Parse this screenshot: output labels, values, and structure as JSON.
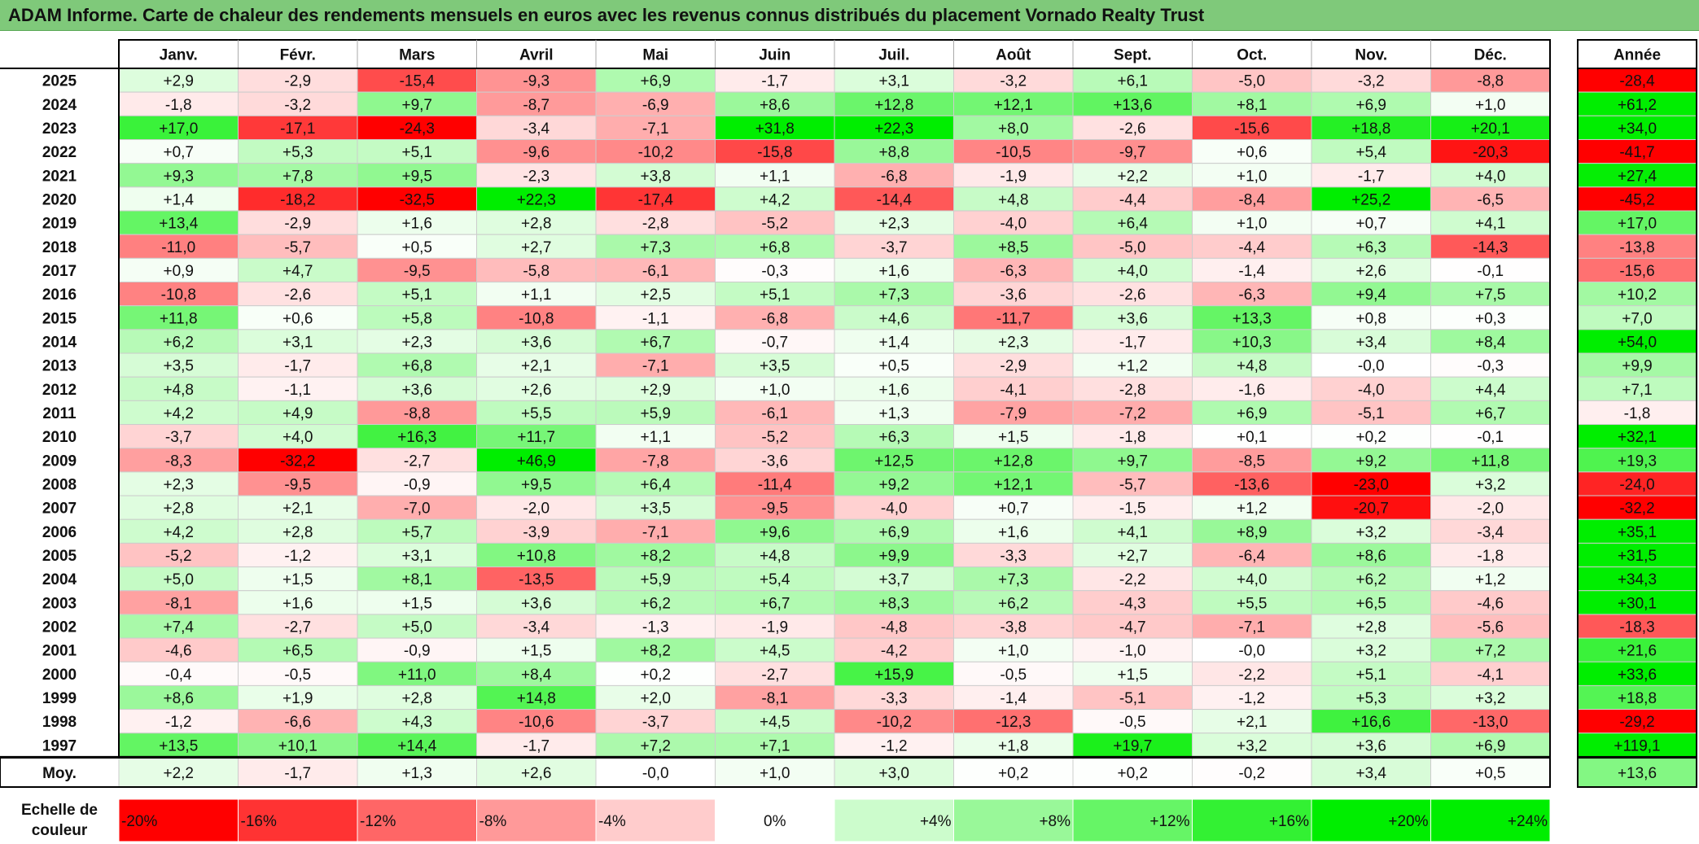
{
  "title": "ADAM Informe. Carte de chaleur des rendements mensuels en euros avec les revenus connus distribués du placement Vornado Realty Trust",
  "chart_data": {
    "type": "heatmap",
    "columns": [
      "Janv.",
      "Févr.",
      "Mars",
      "Avril",
      "Mai",
      "Juin",
      "Juil.",
      "Août",
      "Sept.",
      "Oct.",
      "Nov.",
      "Déc."
    ],
    "year_column_label": "Année",
    "average_label": "Moy.",
    "rows": [
      {
        "label": "2025",
        "values": [
          "+2,9",
          "-2,9",
          "-15,4",
          "-9,3",
          "+6,9",
          "-1,7",
          "+3,1",
          "-3,2",
          "+6,1",
          "-5,0",
          "-3,2",
          "-8,8"
        ],
        "year": "-28,4"
      },
      {
        "label": "2024",
        "values": [
          "-1,8",
          "-3,2",
          "+9,7",
          "-8,7",
          "-6,9",
          "+8,6",
          "+12,8",
          "+12,1",
          "+13,6",
          "+8,1",
          "+6,9",
          "+1,0"
        ],
        "year": "+61,2"
      },
      {
        "label": "2023",
        "values": [
          "+17,0",
          "-17,1",
          "-24,3",
          "-3,4",
          "-7,1",
          "+31,8",
          "+22,3",
          "+8,0",
          "-2,6",
          "-15,6",
          "+18,8",
          "+20,1"
        ],
        "year": "+34,0"
      },
      {
        "label": "2022",
        "values": [
          "+0,7",
          "+5,3",
          "+5,1",
          "-9,6",
          "-10,2",
          "-15,8",
          "+8,8",
          "-10,5",
          "-9,7",
          "+0,6",
          "+5,4",
          "-20,3"
        ],
        "year": "-41,7"
      },
      {
        "label": "2021",
        "values": [
          "+9,3",
          "+7,8",
          "+9,5",
          "-2,3",
          "+3,8",
          "+1,1",
          "-6,8",
          "-1,9",
          "+2,2",
          "+1,0",
          "-1,7",
          "+4,0"
        ],
        "year": "+27,4"
      },
      {
        "label": "2020",
        "values": [
          "+1,4",
          "-18,2",
          "-32,5",
          "+22,3",
          "-17,4",
          "+4,2",
          "-14,4",
          "+4,8",
          "-4,4",
          "-8,4",
          "+25,2",
          "-6,5"
        ],
        "year": "-45,2"
      },
      {
        "label": "2019",
        "values": [
          "+13,4",
          "-2,9",
          "+1,6",
          "+2,8",
          "-2,8",
          "-5,2",
          "+2,3",
          "-4,0",
          "+6,4",
          "+1,0",
          "+0,7",
          "+4,1"
        ],
        "year": "+17,0"
      },
      {
        "label": "2018",
        "values": [
          "-11,0",
          "-5,7",
          "+0,5",
          "+2,7",
          "+7,3",
          "+6,8",
          "-3,7",
          "+8,5",
          "-5,0",
          "-4,4",
          "+6,3",
          "-14,3"
        ],
        "year": "-13,8"
      },
      {
        "label": "2017",
        "values": [
          "+0,9",
          "+4,7",
          "-9,5",
          "-5,8",
          "-6,1",
          "-0,3",
          "+1,6",
          "-6,3",
          "+4,0",
          "-1,4",
          "+2,6",
          "-0,1"
        ],
        "year": "-15,6"
      },
      {
        "label": "2016",
        "values": [
          "-10,8",
          "-2,6",
          "+5,1",
          "+1,1",
          "+2,5",
          "+5,1",
          "+7,3",
          "-3,6",
          "-2,6",
          "-6,3",
          "+9,4",
          "+7,5"
        ],
        "year": "+10,2"
      },
      {
        "label": "2015",
        "values": [
          "+11,8",
          "+0,6",
          "+5,8",
          "-10,8",
          "-1,1",
          "-6,8",
          "+4,6",
          "-11,7",
          "+3,6",
          "+13,3",
          "+0,8",
          "+0,3"
        ],
        "year": "+7,0"
      },
      {
        "label": "2014",
        "values": [
          "+6,2",
          "+3,1",
          "+2,3",
          "+3,6",
          "+6,7",
          "-0,7",
          "+1,4",
          "+2,3",
          "-1,7",
          "+10,3",
          "+3,4",
          "+8,4"
        ],
        "year": "+54,0"
      },
      {
        "label": "2013",
        "values": [
          "+3,5",
          "-1,7",
          "+6,8",
          "+2,1",
          "-7,1",
          "+3,5",
          "+0,5",
          "-2,9",
          "+1,2",
          "+4,8",
          "-0,0",
          "-0,3"
        ],
        "year": "+9,9"
      },
      {
        "label": "2012",
        "values": [
          "+4,8",
          "-1,1",
          "+3,6",
          "+2,6",
          "+2,9",
          "+1,0",
          "+1,6",
          "-4,1",
          "-2,8",
          "-1,6",
          "-4,0",
          "+4,4"
        ],
        "year": "+7,1"
      },
      {
        "label": "2011",
        "values": [
          "+4,2",
          "+4,9",
          "-8,8",
          "+5,5",
          "+5,9",
          "-6,1",
          "+1,3",
          "-7,9",
          "-7,2",
          "+6,9",
          "-5,1",
          "+6,7"
        ],
        "year": "-1,8"
      },
      {
        "label": "2010",
        "values": [
          "-3,7",
          "+4,0",
          "+16,3",
          "+11,7",
          "+1,1",
          "-5,2",
          "+6,3",
          "+1,5",
          "-1,8",
          "+0,1",
          "+0,2",
          "-0,1"
        ],
        "year": "+32,1"
      },
      {
        "label": "2009",
        "values": [
          "-8,3",
          "-32,2",
          "-2,7",
          "+46,9",
          "-7,8",
          "-3,6",
          "+12,5",
          "+12,8",
          "+9,7",
          "-8,5",
          "+9,2",
          "+11,8"
        ],
        "year": "+19,3"
      },
      {
        "label": "2008",
        "values": [
          "+2,3",
          "-9,5",
          "-0,9",
          "+9,5",
          "+6,4",
          "-11,4",
          "+9,2",
          "+12,1",
          "-5,7",
          "-13,6",
          "-23,0",
          "+3,2"
        ],
        "year": "-24,0"
      },
      {
        "label": "2007",
        "values": [
          "+2,8",
          "+2,1",
          "-7,0",
          "-2,0",
          "+3,5",
          "-9,5",
          "-4,0",
          "+0,7",
          "-1,5",
          "+1,2",
          "-20,7",
          "-2,0"
        ],
        "year": "-32,2"
      },
      {
        "label": "2006",
        "values": [
          "+4,2",
          "+2,8",
          "+5,7",
          "-3,9",
          "-7,1",
          "+9,6",
          "+6,9",
          "+1,6",
          "+4,1",
          "+8,9",
          "+3,2",
          "-3,4"
        ],
        "year": "+35,1"
      },
      {
        "label": "2005",
        "values": [
          "-5,2",
          "-1,2",
          "+3,1",
          "+10,8",
          "+8,2",
          "+4,8",
          "+9,9",
          "-3,3",
          "+2,7",
          "-6,4",
          "+8,6",
          "-1,8"
        ],
        "year": "+31,5"
      },
      {
        "label": "2004",
        "values": [
          "+5,0",
          "+1,5",
          "+8,1",
          "-13,5",
          "+5,9",
          "+5,4",
          "+3,7",
          "+7,3",
          "-2,2",
          "+4,0",
          "+6,2",
          "+1,2"
        ],
        "year": "+34,3"
      },
      {
        "label": "2003",
        "values": [
          "-8,1",
          "+1,6",
          "+1,5",
          "+3,6",
          "+6,2",
          "+6,7",
          "+8,3",
          "+6,2",
          "-4,3",
          "+5,5",
          "+6,5",
          "-4,6"
        ],
        "year": "+30,1"
      },
      {
        "label": "2002",
        "values": [
          "+7,4",
          "-2,7",
          "+5,0",
          "-3,4",
          "-1,3",
          "-1,9",
          "-4,8",
          "-3,8",
          "-4,7",
          "-7,1",
          "+2,8",
          "-5,6"
        ],
        "year": "-18,3"
      },
      {
        "label": "2001",
        "values": [
          "-4,6",
          "+6,5",
          "-0,9",
          "+1,5",
          "+8,2",
          "+4,5",
          "-4,2",
          "+1,0",
          "-1,0",
          "-0,0",
          "+3,2",
          "+7,2"
        ],
        "year": "+21,6"
      },
      {
        "label": "2000",
        "values": [
          "-0,4",
          "-0,5",
          "+11,0",
          "+8,4",
          "+0,2",
          "-2,7",
          "+15,9",
          "-0,5",
          "+1,5",
          "-2,2",
          "+5,1",
          "-4,1"
        ],
        "year": "+33,6"
      },
      {
        "label": "1999",
        "values": [
          "+8,6",
          "+1,9",
          "+2,8",
          "+14,8",
          "+2,0",
          "-8,1",
          "-3,3",
          "-1,4",
          "-5,1",
          "-1,2",
          "+5,3",
          "+3,2"
        ],
        "year": "+18,8"
      },
      {
        "label": "1998",
        "values": [
          "-1,2",
          "-6,6",
          "+4,3",
          "-10,6",
          "-3,7",
          "+4,5",
          "-10,2",
          "-12,3",
          "-0,5",
          "+2,1",
          "+16,6",
          "-13,0"
        ],
        "year": "-29,2"
      },
      {
        "label": "1997",
        "values": [
          "+13,5",
          "+10,1",
          "+14,4",
          "-1,7",
          "+7,2",
          "+7,1",
          "-1,2",
          "+1,8",
          "+19,7",
          "+3,2",
          "+3,6",
          "+6,9"
        ],
        "year": "+119,1"
      }
    ],
    "average": {
      "values": [
        "+2,2",
        "-1,7",
        "+1,3",
        "+2,6",
        "-0,0",
        "+1,0",
        "+3,0",
        "+0,2",
        "+0,2",
        "-0,2",
        "+3,4",
        "+0,5"
      ],
      "year": "+13,6"
    },
    "scale_title_lines": [
      "Echelle de",
      "couleur"
    ],
    "scale": [
      {
        "label": "-20%",
        "value": -20
      },
      {
        "label": "-16%",
        "value": -16
      },
      {
        "label": "-12%",
        "value": -12
      },
      {
        "label": "-8%",
        "value": -8
      },
      {
        "label": "-4%",
        "value": -4
      },
      {
        "label": "0%",
        "value": 0
      },
      {
        "label": "+4%",
        "value": 4
      },
      {
        "label": "+8%",
        "value": 8
      },
      {
        "label": "+12%",
        "value": 12
      },
      {
        "label": "+16%",
        "value": 16
      },
      {
        "label": "+20%",
        "value": 20
      },
      {
        "label": "+24%",
        "value": 24
      }
    ],
    "colors": {
      "negative_max": "#ff0000",
      "neutral": "#ffffff",
      "positive_max": "#00ee00",
      "title_bar": "#7fc97a"
    }
  }
}
